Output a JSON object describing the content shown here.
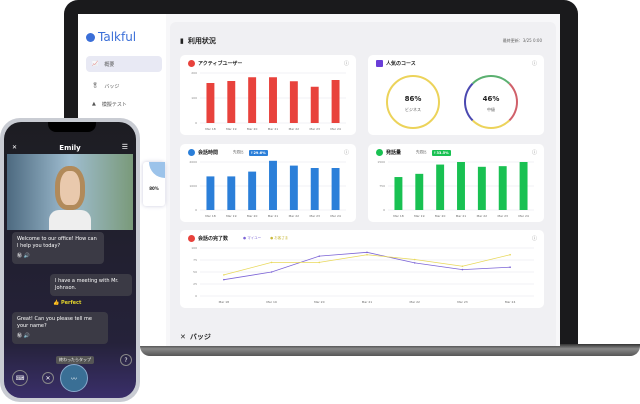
{
  "app": {
    "logo": "Talkful"
  },
  "sidebar": {
    "items": [
      {
        "label": "概要",
        "icon": "chart-icon",
        "active": true
      },
      {
        "label": "バッジ",
        "icon": "badge-icon"
      },
      {
        "label": "模擬テスト",
        "icon": "test-icon"
      }
    ]
  },
  "main": {
    "title": "利用状況",
    "updated": "最終更新：3/25 0:00",
    "bottom_section": "バッジ"
  },
  "dates": [
    "Mar 18",
    "Mar 19",
    "Mar 20",
    "Mar 21",
    "Mar 22",
    "Mar 23",
    "Mar 24"
  ],
  "chart_data": [
    {
      "type": "bar",
      "title": "アクティブユーザー",
      "color": "#e8423c",
      "ylim": [
        0,
        200
      ],
      "yticks": [
        "0",
        "100",
        "200"
      ],
      "values": [
        160,
        168,
        183,
        183,
        167,
        145,
        172
      ]
    },
    {
      "type": "bar",
      "title": "会話時間",
      "compare_label": "先週比",
      "change": "↑29.6%",
      "color": "#2b7fd9",
      "ylim": [
        0,
        2000
      ],
      "yticks": [
        "0",
        "1000",
        "2000"
      ],
      "values": [
        1400,
        1400,
        1600,
        2050,
        1850,
        1750,
        1750
      ]
    },
    {
      "type": "bar",
      "title": "発話量",
      "compare_label": "先週比",
      "change": "↑33.5%",
      "color": "#19c152",
      "ylim": [
        0,
        1500
      ],
      "yticks": [
        "0",
        "750",
        "1500"
      ],
      "values": [
        1030,
        1130,
        1420,
        1500,
        1350,
        1370,
        1500
      ]
    },
    {
      "type": "line",
      "title": "会話の完了数",
      "ylim": [
        0,
        100
      ],
      "yticks": [
        "0",
        "25",
        "50",
        "75",
        "100"
      ],
      "series": [
        {
          "name": "マイユー",
          "color": "#7c64d6",
          "values": [
            34,
            50,
            83,
            91,
            69,
            55,
            60
          ]
        },
        {
          "name": "お客さま",
          "color": "#e8d85a",
          "values": [
            44,
            70,
            70,
            86,
            76,
            62,
            86
          ]
        }
      ]
    }
  ],
  "courses": {
    "title": "人気のコース",
    "items": [
      {
        "pct": "86%",
        "label": "ビジネス"
      },
      {
        "pct": "46%",
        "label": "中級"
      }
    ]
  },
  "floating_card": {
    "value": "80%"
  },
  "phone": {
    "title": "Emily",
    "messages": [
      {
        "from": "ai",
        "text": "Welcome to our office! How can I help you today?"
      },
      {
        "from": "user",
        "text": "I have a meeting with Mr. Johnson."
      },
      {
        "from": "ai",
        "text": "Great! Can you please tell me your name?"
      }
    ],
    "feedback": "👍 Perfect",
    "tip": "終わったらタップ"
  }
}
